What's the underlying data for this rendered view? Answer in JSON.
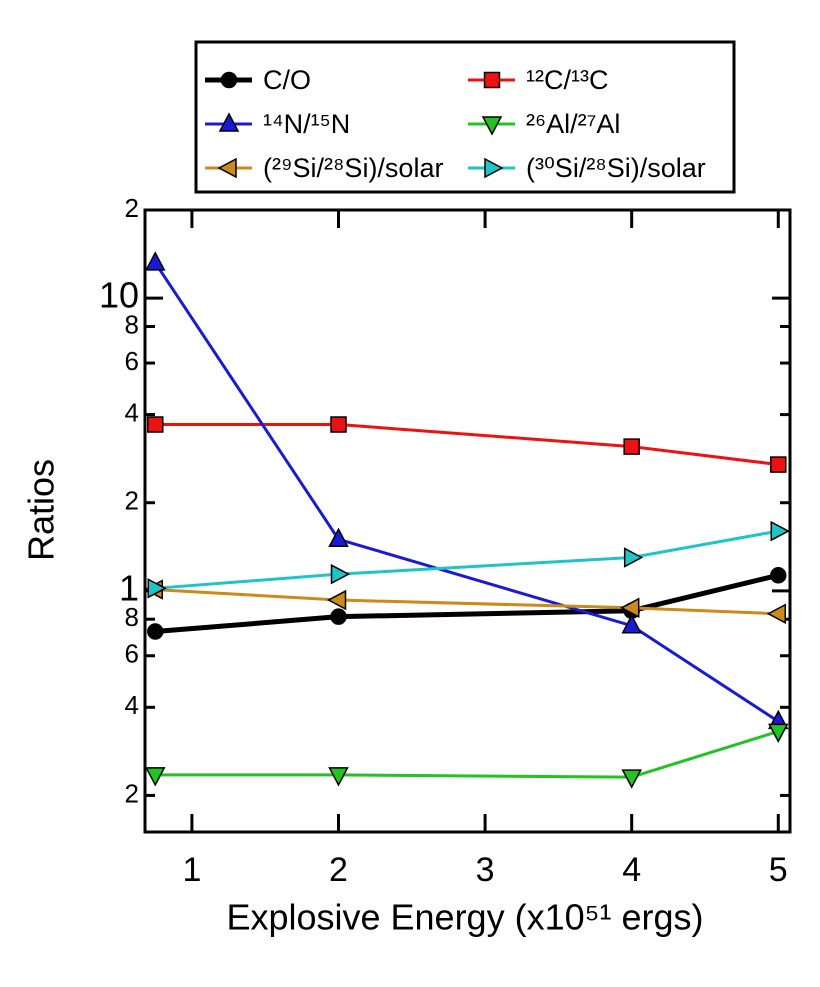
{
  "chart_data": {
    "type": "line",
    "x_label": "Explosive Energy (x10⁵¹ ergs)",
    "y_label": "Ratios",
    "x": [
      0.75,
      2,
      4,
      5
    ],
    "xlim": [
      0.68,
      5.08
    ],
    "xticks": [
      1,
      2,
      3,
      4,
      5
    ],
    "ylim": [
      0.15,
      20
    ],
    "y_log_scale": true,
    "yticks": [
      {
        "value": 20,
        "label": "2"
      },
      10,
      {
        "value": 8,
        "label": "8"
      },
      {
        "value": 6,
        "label": "6"
      },
      {
        "value": 4,
        "label": "4"
      },
      2,
      1,
      {
        "value": 0.8,
        "label": "8"
      },
      {
        "value": 0.6,
        "label": "6"
      },
      {
        "value": 0.4,
        "label": "4"
      },
      {
        "value": 0.2,
        "label": "2"
      }
    ],
    "series": [
      {
        "name": "C/O",
        "color": "#000000",
        "marker": "circle",
        "values": [
          0.726,
          0.816,
          0.855,
          1.13
        ]
      },
      {
        "name": "¹²C/¹³C",
        "color": "#ee1111",
        "marker": "square",
        "values": [
          3.7,
          3.7,
          3.11,
          2.7
        ]
      },
      {
        "name": "¹⁴N/¹⁵N",
        "color": "#1a1ad6",
        "marker": "triangle-up",
        "values": [
          13.2,
          1.5,
          0.76,
          0.358
        ]
      },
      {
        "name": "²⁶Al/²⁷Al",
        "color": "#22c322",
        "marker": "triangle-down",
        "values": [
          0.235,
          0.235,
          0.231,
          0.331
        ]
      },
      {
        "name": "(²⁹Si/²⁸Si)/solar",
        "color": "#cc8a1c",
        "marker": "triangle-left",
        "values": [
          1.01,
          0.93,
          0.875,
          0.835
        ]
      },
      {
        "name": "(³⁰Si/²⁸Si)/solar",
        "color": "#1fc4c8",
        "marker": "triangle-right",
        "values": [
          1.02,
          1.14,
          1.3,
          1.6
        ]
      }
    ]
  }
}
